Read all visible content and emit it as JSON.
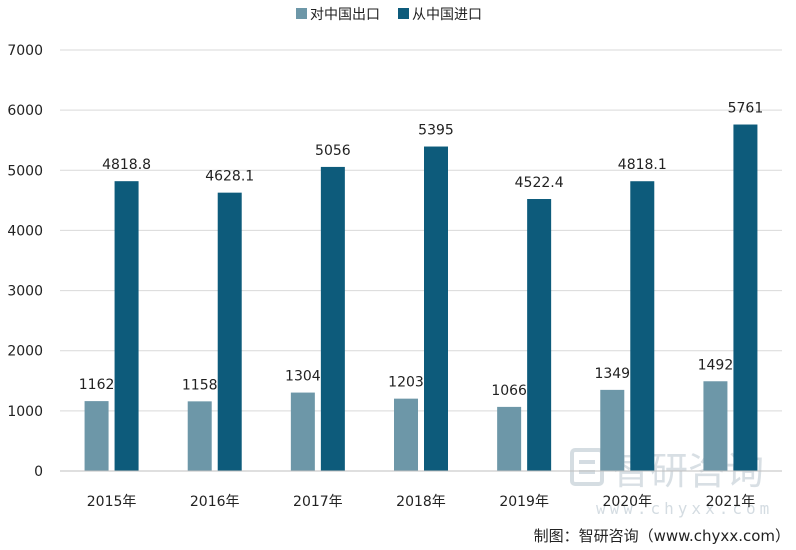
{
  "chart_data": {
    "type": "bar",
    "categories": [
      "2015年",
      "2016年",
      "2017年",
      "2018年",
      "2019年",
      "2020年",
      "2021年"
    ],
    "series": [
      {
        "name": "对中国出口",
        "values": [
          1162,
          1158,
          1304,
          1203,
          1066,
          1349,
          1492
        ],
        "labels": [
          "1162",
          "1158",
          "1304",
          "1203",
          "1066",
          "1349",
          "1492"
        ],
        "color": "#6d97a8"
      },
      {
        "name": "从中国进口",
        "values": [
          4818.8,
          4628.1,
          5056,
          5395,
          4522.4,
          4818.1,
          5761
        ],
        "labels": [
          "4818.8",
          "4628.1",
          "5056",
          "5395",
          "4522.4",
          "4818.1",
          "5761"
        ],
        "color": "#0d5b7b"
      }
    ],
    "yticks": [
      "0",
      "1000",
      "2000",
      "3000",
      "4000",
      "5000",
      "6000",
      "7000"
    ],
    "ylim": [
      0,
      7000
    ],
    "grid": true,
    "legend_position": "top-center"
  },
  "watermark": {
    "brand": "智研咨询",
    "url": "www.chyxx.com"
  },
  "source_text": "制图：智研咨询（www.chyxx.com）"
}
